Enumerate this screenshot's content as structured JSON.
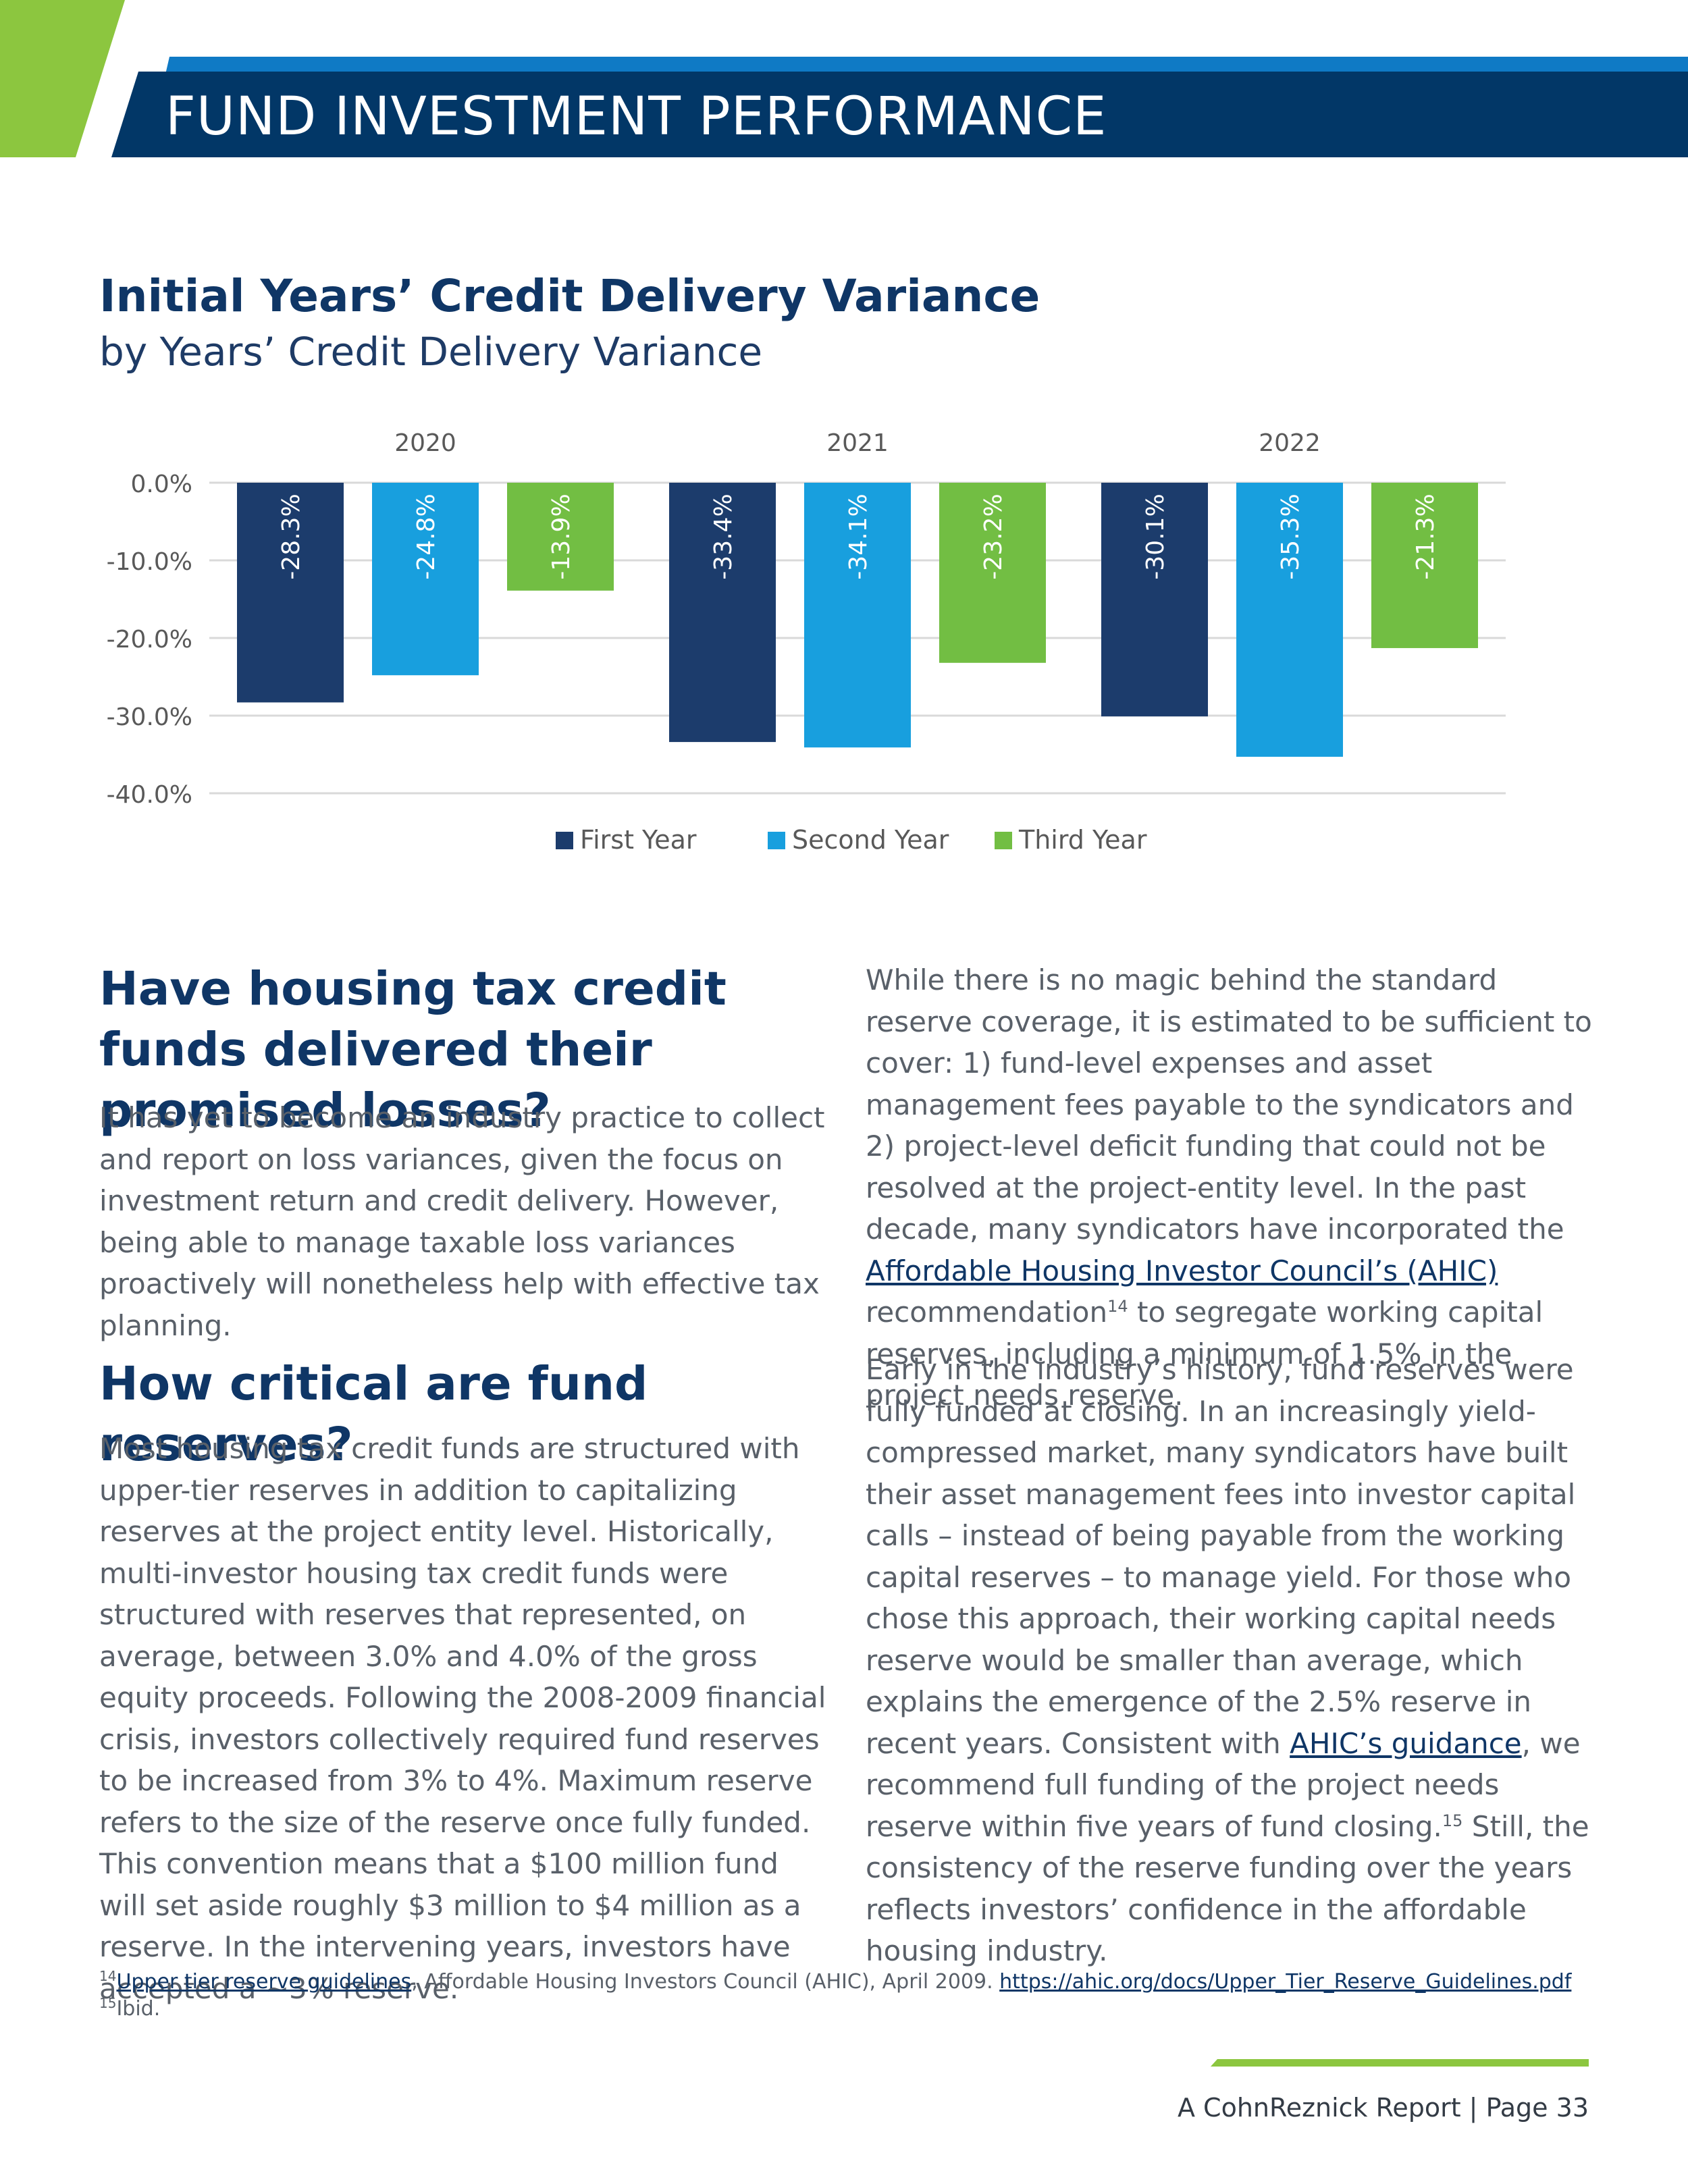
{
  "header": {
    "section_title": "FUND INVESTMENT PERFORMANCE"
  },
  "chart_data": {
    "type": "bar",
    "title": "Initial Years’ Credit Delivery Variance",
    "subtitle": "by Years’ Credit Delivery Variance",
    "categories": [
      "2020",
      "2021",
      "2022"
    ],
    "series": [
      {
        "name": "First Year",
        "values": [
          -28.3,
          -33.4,
          -30.1
        ]
      },
      {
        "name": "Second Year",
        "values": [
          -24.8,
          -34.1,
          -35.3
        ]
      },
      {
        "name": "Third Year",
        "values": [
          -13.9,
          -23.2,
          -21.3
        ]
      }
    ],
    "colors": [
      "#1c3c6c",
      "#189fde",
      "#72be43"
    ],
    "ylim": [
      -40,
      0
    ],
    "yticks": [
      0,
      -10,
      -20,
      -30,
      -40
    ],
    "ytick_labels": [
      "0.0%",
      "-10.0%",
      "-20.0%",
      "-30.0%",
      "-40.0%"
    ],
    "data_labels": [
      [
        "-28.3%",
        "-33.4%",
        "-30.1%"
      ],
      [
        "-24.8%",
        "-34.1%",
        "-35.3%"
      ],
      [
        "-13.9%",
        "-23.2%",
        "-21.3%"
      ]
    ],
    "xlabel": "",
    "ylabel": "",
    "grid": true,
    "legend_position": "bottom"
  },
  "article": {
    "q1_heading": "Have housing tax credit funds delivered their promised losses?",
    "q1_body": "It has yet to become an industry practice to collect and report on loss variances, given the focus on investment return and credit delivery. However, being able to manage taxable loss variances proactively will nonetheless help with effective tax planning.",
    "q2_heading": "How critical are fund reserves?",
    "q2_body": "Most housing tax credit funds are structured with upper-tier reserves in addition to capitalizing reserves at the project entity level. Historically, multi-investor housing tax credit funds were structured with reserves that represented, on average, between 3.0% and 4.0% of the gross equity proceeds. Following the 2008-2009 financial crisis, investors collectively required fund reserves to be increased from 3% to 4%. Maximum reserve refers to the size of the reserve once fully funded. This convention means that a $100 million fund will set aside roughly $3 million to $4 million as a reserve. In the intervening years, investors have accepted a ~3% reserve.",
    "right_p1_a": "While there is no magic behind the standard reserve coverage, it is estimated to be sufficient to cover: 1) fund-level expenses and asset management fees payable to the syndicators and 2) project-level deficit funding that could not be resolved at the project-entity level. In the past decade, many syndicators have incorporated the ",
    "right_p1_link": "Affordable Housing Investor Council’s (AHIC)",
    "right_p1_b": " recommendation",
    "right_p1_sup": "14",
    "right_p1_c": "  to segregate working capital reserves, including a minimum of 1.5% in the project needs reserve.",
    "right_p2_a": "Early in the industry’s history, fund reserves were fully funded at closing. In an increasingly yield-compressed market, many syndicators have built their asset management fees into investor capital calls – instead of being payable from the working capital reserves – to manage yield. For those who chose this approach, their working capital needs reserve would be smaller than average, which explains the emergence of the 2.5% reserve in recent years. Consistent with ",
    "right_p2_link": "AHIC’s guidance",
    "right_p2_b": ", we recommend full funding of the project needs reserve within five years of fund closing.",
    "right_p2_sup": "15",
    "right_p2_c": " Still, the consistency of the reserve funding over the years reflects investors’ confidence in the affordable housing industry."
  },
  "footnotes": {
    "fn14_num": "14",
    "fn14_link": "Upper tier reserve guidelines",
    "fn14_text": ", Affordable Housing Investors Council (AHIC), April 2009. ",
    "fn14_url": "https://ahic.org/docs/Upper_Tier_Reserve_Guidelines.pdf",
    "fn15_num": "15",
    "fn15_text": "Ibid."
  },
  "footer": {
    "label": "A CohnReznick Report  |  Page 33"
  }
}
